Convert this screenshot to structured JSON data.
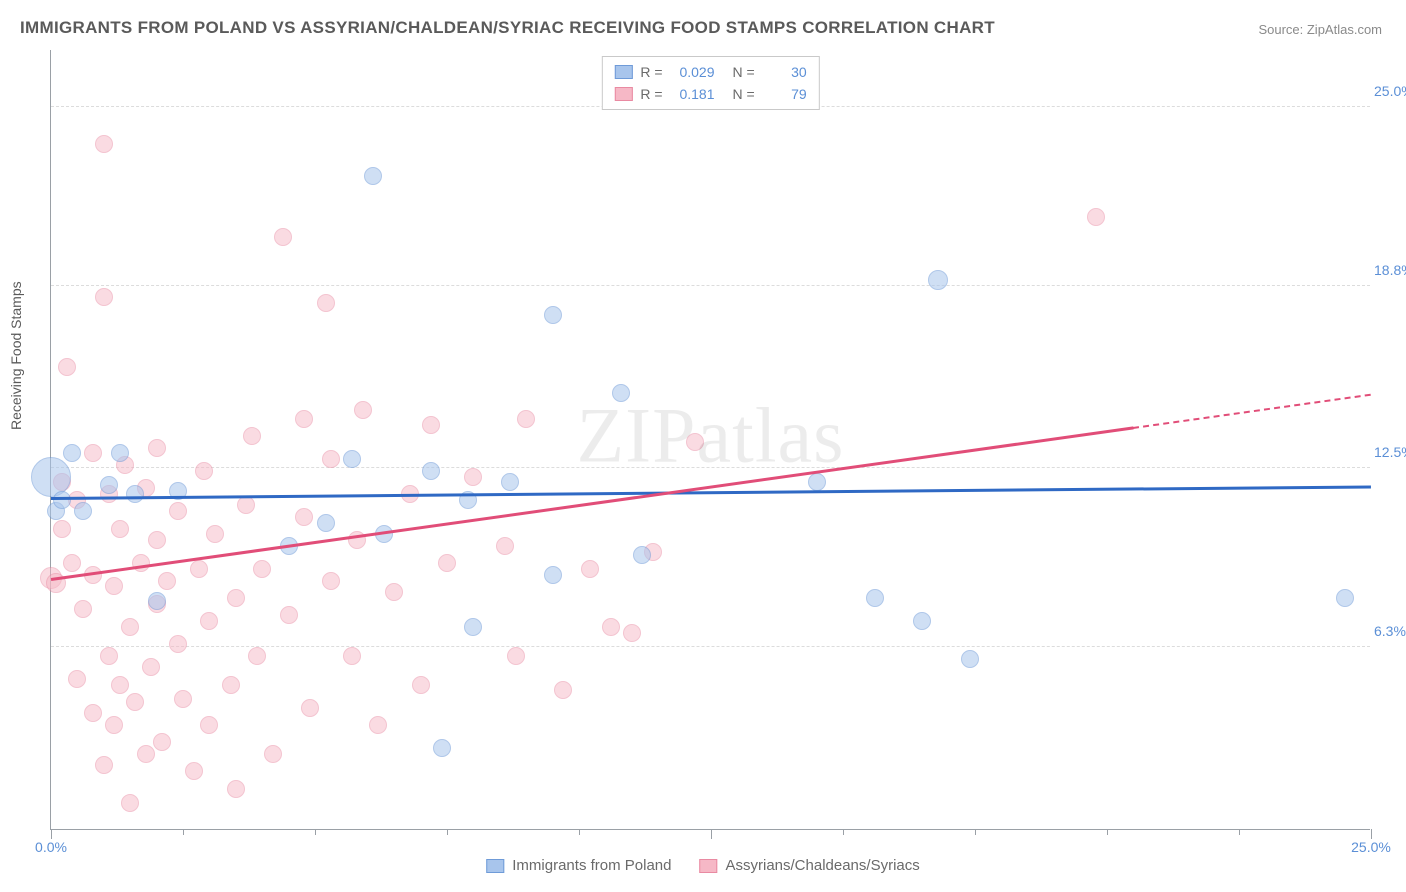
{
  "title": "IMMIGRANTS FROM POLAND VS ASSYRIAN/CHALDEAN/SYRIAC RECEIVING FOOD STAMPS CORRELATION CHART",
  "source": "Source: ZipAtlas.com",
  "watermark": "ZIPatlas",
  "y_axis_label": "Receiving Food Stamps",
  "chart": {
    "type": "scatter",
    "background_color": "#ffffff",
    "grid_color": "#dcdcdc",
    "axis_color": "#9aa0a6",
    "xlim": [
      0,
      25
    ],
    "ylim": [
      0,
      27
    ],
    "y_ticks": [
      {
        "value": 6.3,
        "label": "6.3%"
      },
      {
        "value": 12.5,
        "label": "12.5%"
      },
      {
        "value": 18.8,
        "label": "18.8%"
      },
      {
        "value": 25.0,
        "label": "25.0%"
      }
    ],
    "x_ticks_minor": [
      2.5,
      5,
      7.5,
      10,
      12.5,
      15,
      17.5,
      20,
      22.5
    ],
    "x_ticks_labeled": [
      {
        "value": 0.0,
        "label": "0.0%"
      },
      {
        "value": 25.0,
        "label": "25.0%"
      }
    ],
    "x_ticks_major_lines": [
      0,
      12.5,
      25.0
    ],
    "series": [
      {
        "id": "poland",
        "label": "Immigrants from Poland",
        "fill_color": "#a8c5ec",
        "fill_opacity": 0.55,
        "stroke_color": "#6f9bd8",
        "trend_color": "#2f69c4",
        "r_value": "0.029",
        "n_value": "30",
        "trend": {
          "x1": 0,
          "y1": 11.4,
          "x2": 25,
          "y2": 11.8,
          "solid_until": 25
        },
        "points": [
          {
            "x": 0.0,
            "y": 12.2,
            "r": 20
          },
          {
            "x": 0.1,
            "y": 11.0,
            "r": 9
          },
          {
            "x": 0.2,
            "y": 11.4,
            "r": 9
          },
          {
            "x": 0.4,
            "y": 13.0,
            "r": 9
          },
          {
            "x": 0.6,
            "y": 11.0,
            "r": 9
          },
          {
            "x": 1.1,
            "y": 11.9,
            "r": 9
          },
          {
            "x": 1.3,
            "y": 13.0,
            "r": 9
          },
          {
            "x": 1.6,
            "y": 11.6,
            "r": 9
          },
          {
            "x": 2.0,
            "y": 7.9,
            "r": 9
          },
          {
            "x": 2.4,
            "y": 11.7,
            "r": 9
          },
          {
            "x": 4.5,
            "y": 9.8,
            "r": 9
          },
          {
            "x": 5.2,
            "y": 10.6,
            "r": 9
          },
          {
            "x": 5.7,
            "y": 12.8,
            "r": 9
          },
          {
            "x": 6.1,
            "y": 22.6,
            "r": 9
          },
          {
            "x": 6.3,
            "y": 10.2,
            "r": 9
          },
          {
            "x": 7.2,
            "y": 12.4,
            "r": 9
          },
          {
            "x": 7.4,
            "y": 2.8,
            "r": 9
          },
          {
            "x": 7.9,
            "y": 11.4,
            "r": 9
          },
          {
            "x": 8.0,
            "y": 7.0,
            "r": 9
          },
          {
            "x": 8.7,
            "y": 12.0,
            "r": 9
          },
          {
            "x": 9.5,
            "y": 17.8,
            "r": 9
          },
          {
            "x": 9.5,
            "y": 8.8,
            "r": 9
          },
          {
            "x": 10.8,
            "y": 15.1,
            "r": 9
          },
          {
            "x": 11.2,
            "y": 9.5,
            "r": 9
          },
          {
            "x": 14.5,
            "y": 12.0,
            "r": 9
          },
          {
            "x": 15.6,
            "y": 8.0,
            "r": 9
          },
          {
            "x": 16.5,
            "y": 7.2,
            "r": 9
          },
          {
            "x": 16.8,
            "y": 19.0,
            "r": 10
          },
          {
            "x": 17.4,
            "y": 5.9,
            "r": 9
          },
          {
            "x": 24.5,
            "y": 8.0,
            "r": 9
          }
        ]
      },
      {
        "id": "assyrian",
        "label": "Assyrians/Chaldeans/Syriacs",
        "fill_color": "#f6b8c6",
        "fill_opacity": 0.5,
        "stroke_color": "#e98aa2",
        "trend_color": "#e14d78",
        "r_value": "0.181",
        "n_value": "79",
        "trend": {
          "x1": 0,
          "y1": 8.6,
          "x2": 25,
          "y2": 15.0,
          "solid_until": 20.5
        },
        "points": [
          {
            "x": 0.0,
            "y": 8.7,
            "r": 11
          },
          {
            "x": 0.1,
            "y": 8.5,
            "r": 10
          },
          {
            "x": 0.2,
            "y": 10.4,
            "r": 9
          },
          {
            "x": 0.2,
            "y": 12.0,
            "r": 9
          },
          {
            "x": 0.3,
            "y": 16.0,
            "r": 9
          },
          {
            "x": 0.4,
            "y": 9.2,
            "r": 9
          },
          {
            "x": 0.5,
            "y": 11.4,
            "r": 9
          },
          {
            "x": 0.5,
            "y": 5.2,
            "r": 9
          },
          {
            "x": 0.6,
            "y": 7.6,
            "r": 9
          },
          {
            "x": 0.8,
            "y": 4.0,
            "r": 9
          },
          {
            "x": 0.8,
            "y": 8.8,
            "r": 9
          },
          {
            "x": 0.8,
            "y": 13.0,
            "r": 9
          },
          {
            "x": 1.0,
            "y": 23.7,
            "r": 9
          },
          {
            "x": 1.0,
            "y": 18.4,
            "r": 9
          },
          {
            "x": 1.0,
            "y": 2.2,
            "r": 9
          },
          {
            "x": 1.1,
            "y": 11.6,
            "r": 9
          },
          {
            "x": 1.1,
            "y": 6.0,
            "r": 9
          },
          {
            "x": 1.2,
            "y": 8.4,
            "r": 9
          },
          {
            "x": 1.2,
            "y": 3.6,
            "r": 9
          },
          {
            "x": 1.3,
            "y": 5.0,
            "r": 9
          },
          {
            "x": 1.3,
            "y": 10.4,
            "r": 9
          },
          {
            "x": 1.4,
            "y": 12.6,
            "r": 9
          },
          {
            "x": 1.5,
            "y": 0.9,
            "r": 9
          },
          {
            "x": 1.5,
            "y": 7.0,
            "r": 9
          },
          {
            "x": 1.6,
            "y": 4.4,
            "r": 9
          },
          {
            "x": 1.7,
            "y": 9.2,
            "r": 9
          },
          {
            "x": 1.8,
            "y": 11.8,
            "r": 9
          },
          {
            "x": 1.8,
            "y": 2.6,
            "r": 9
          },
          {
            "x": 1.9,
            "y": 5.6,
            "r": 9
          },
          {
            "x": 2.0,
            "y": 7.8,
            "r": 9
          },
          {
            "x": 2.0,
            "y": 10.0,
            "r": 9
          },
          {
            "x": 2.0,
            "y": 13.2,
            "r": 9
          },
          {
            "x": 2.1,
            "y": 3.0,
            "r": 9
          },
          {
            "x": 2.2,
            "y": 8.6,
            "r": 9
          },
          {
            "x": 2.4,
            "y": 6.4,
            "r": 9
          },
          {
            "x": 2.4,
            "y": 11.0,
            "r": 9
          },
          {
            "x": 2.5,
            "y": 4.5,
            "r": 9
          },
          {
            "x": 2.7,
            "y": 2.0,
            "r": 9
          },
          {
            "x": 2.8,
            "y": 9.0,
            "r": 9
          },
          {
            "x": 2.9,
            "y": 12.4,
            "r": 9
          },
          {
            "x": 3.0,
            "y": 3.6,
            "r": 9
          },
          {
            "x": 3.0,
            "y": 7.2,
            "r": 9
          },
          {
            "x": 3.1,
            "y": 10.2,
            "r": 9
          },
          {
            "x": 3.4,
            "y": 5.0,
            "r": 9
          },
          {
            "x": 3.5,
            "y": 8.0,
            "r": 9
          },
          {
            "x": 3.5,
            "y": 1.4,
            "r": 9
          },
          {
            "x": 3.7,
            "y": 11.2,
            "r": 9
          },
          {
            "x": 3.8,
            "y": 13.6,
            "r": 9
          },
          {
            "x": 3.9,
            "y": 6.0,
            "r": 9
          },
          {
            "x": 4.0,
            "y": 9.0,
            "r": 9
          },
          {
            "x": 4.2,
            "y": 2.6,
            "r": 9
          },
          {
            "x": 4.4,
            "y": 20.5,
            "r": 9
          },
          {
            "x": 4.5,
            "y": 7.4,
            "r": 9
          },
          {
            "x": 4.8,
            "y": 10.8,
            "r": 9
          },
          {
            "x": 4.8,
            "y": 14.2,
            "r": 9
          },
          {
            "x": 4.9,
            "y": 4.2,
            "r": 9
          },
          {
            "x": 5.2,
            "y": 18.2,
            "r": 9
          },
          {
            "x": 5.3,
            "y": 8.6,
            "r": 9
          },
          {
            "x": 5.3,
            "y": 12.8,
            "r": 9
          },
          {
            "x": 5.7,
            "y": 6.0,
            "r": 9
          },
          {
            "x": 5.8,
            "y": 10.0,
            "r": 9
          },
          {
            "x": 5.9,
            "y": 14.5,
            "r": 9
          },
          {
            "x": 6.2,
            "y": 3.6,
            "r": 9
          },
          {
            "x": 6.5,
            "y": 8.2,
            "r": 9
          },
          {
            "x": 6.8,
            "y": 11.6,
            "r": 9
          },
          {
            "x": 7.0,
            "y": 5.0,
            "r": 9
          },
          {
            "x": 7.2,
            "y": 14.0,
            "r": 9
          },
          {
            "x": 7.5,
            "y": 9.2,
            "r": 9
          },
          {
            "x": 8.0,
            "y": 12.2,
            "r": 9
          },
          {
            "x": 8.6,
            "y": 9.8,
            "r": 9
          },
          {
            "x": 8.8,
            "y": 6.0,
            "r": 9
          },
          {
            "x": 9.0,
            "y": 14.2,
            "r": 9
          },
          {
            "x": 9.7,
            "y": 4.8,
            "r": 9
          },
          {
            "x": 10.2,
            "y": 9.0,
            "r": 9
          },
          {
            "x": 10.6,
            "y": 7.0,
            "r": 9
          },
          {
            "x": 11.0,
            "y": 6.8,
            "r": 9
          },
          {
            "x": 11.4,
            "y": 9.6,
            "r": 9
          },
          {
            "x": 12.2,
            "y": 13.4,
            "r": 9
          },
          {
            "x": 19.8,
            "y": 21.2,
            "r": 9
          }
        ]
      }
    ]
  },
  "legend_top": {
    "r_label": "R =",
    "n_label": "N ="
  },
  "legend_bottom": {}
}
